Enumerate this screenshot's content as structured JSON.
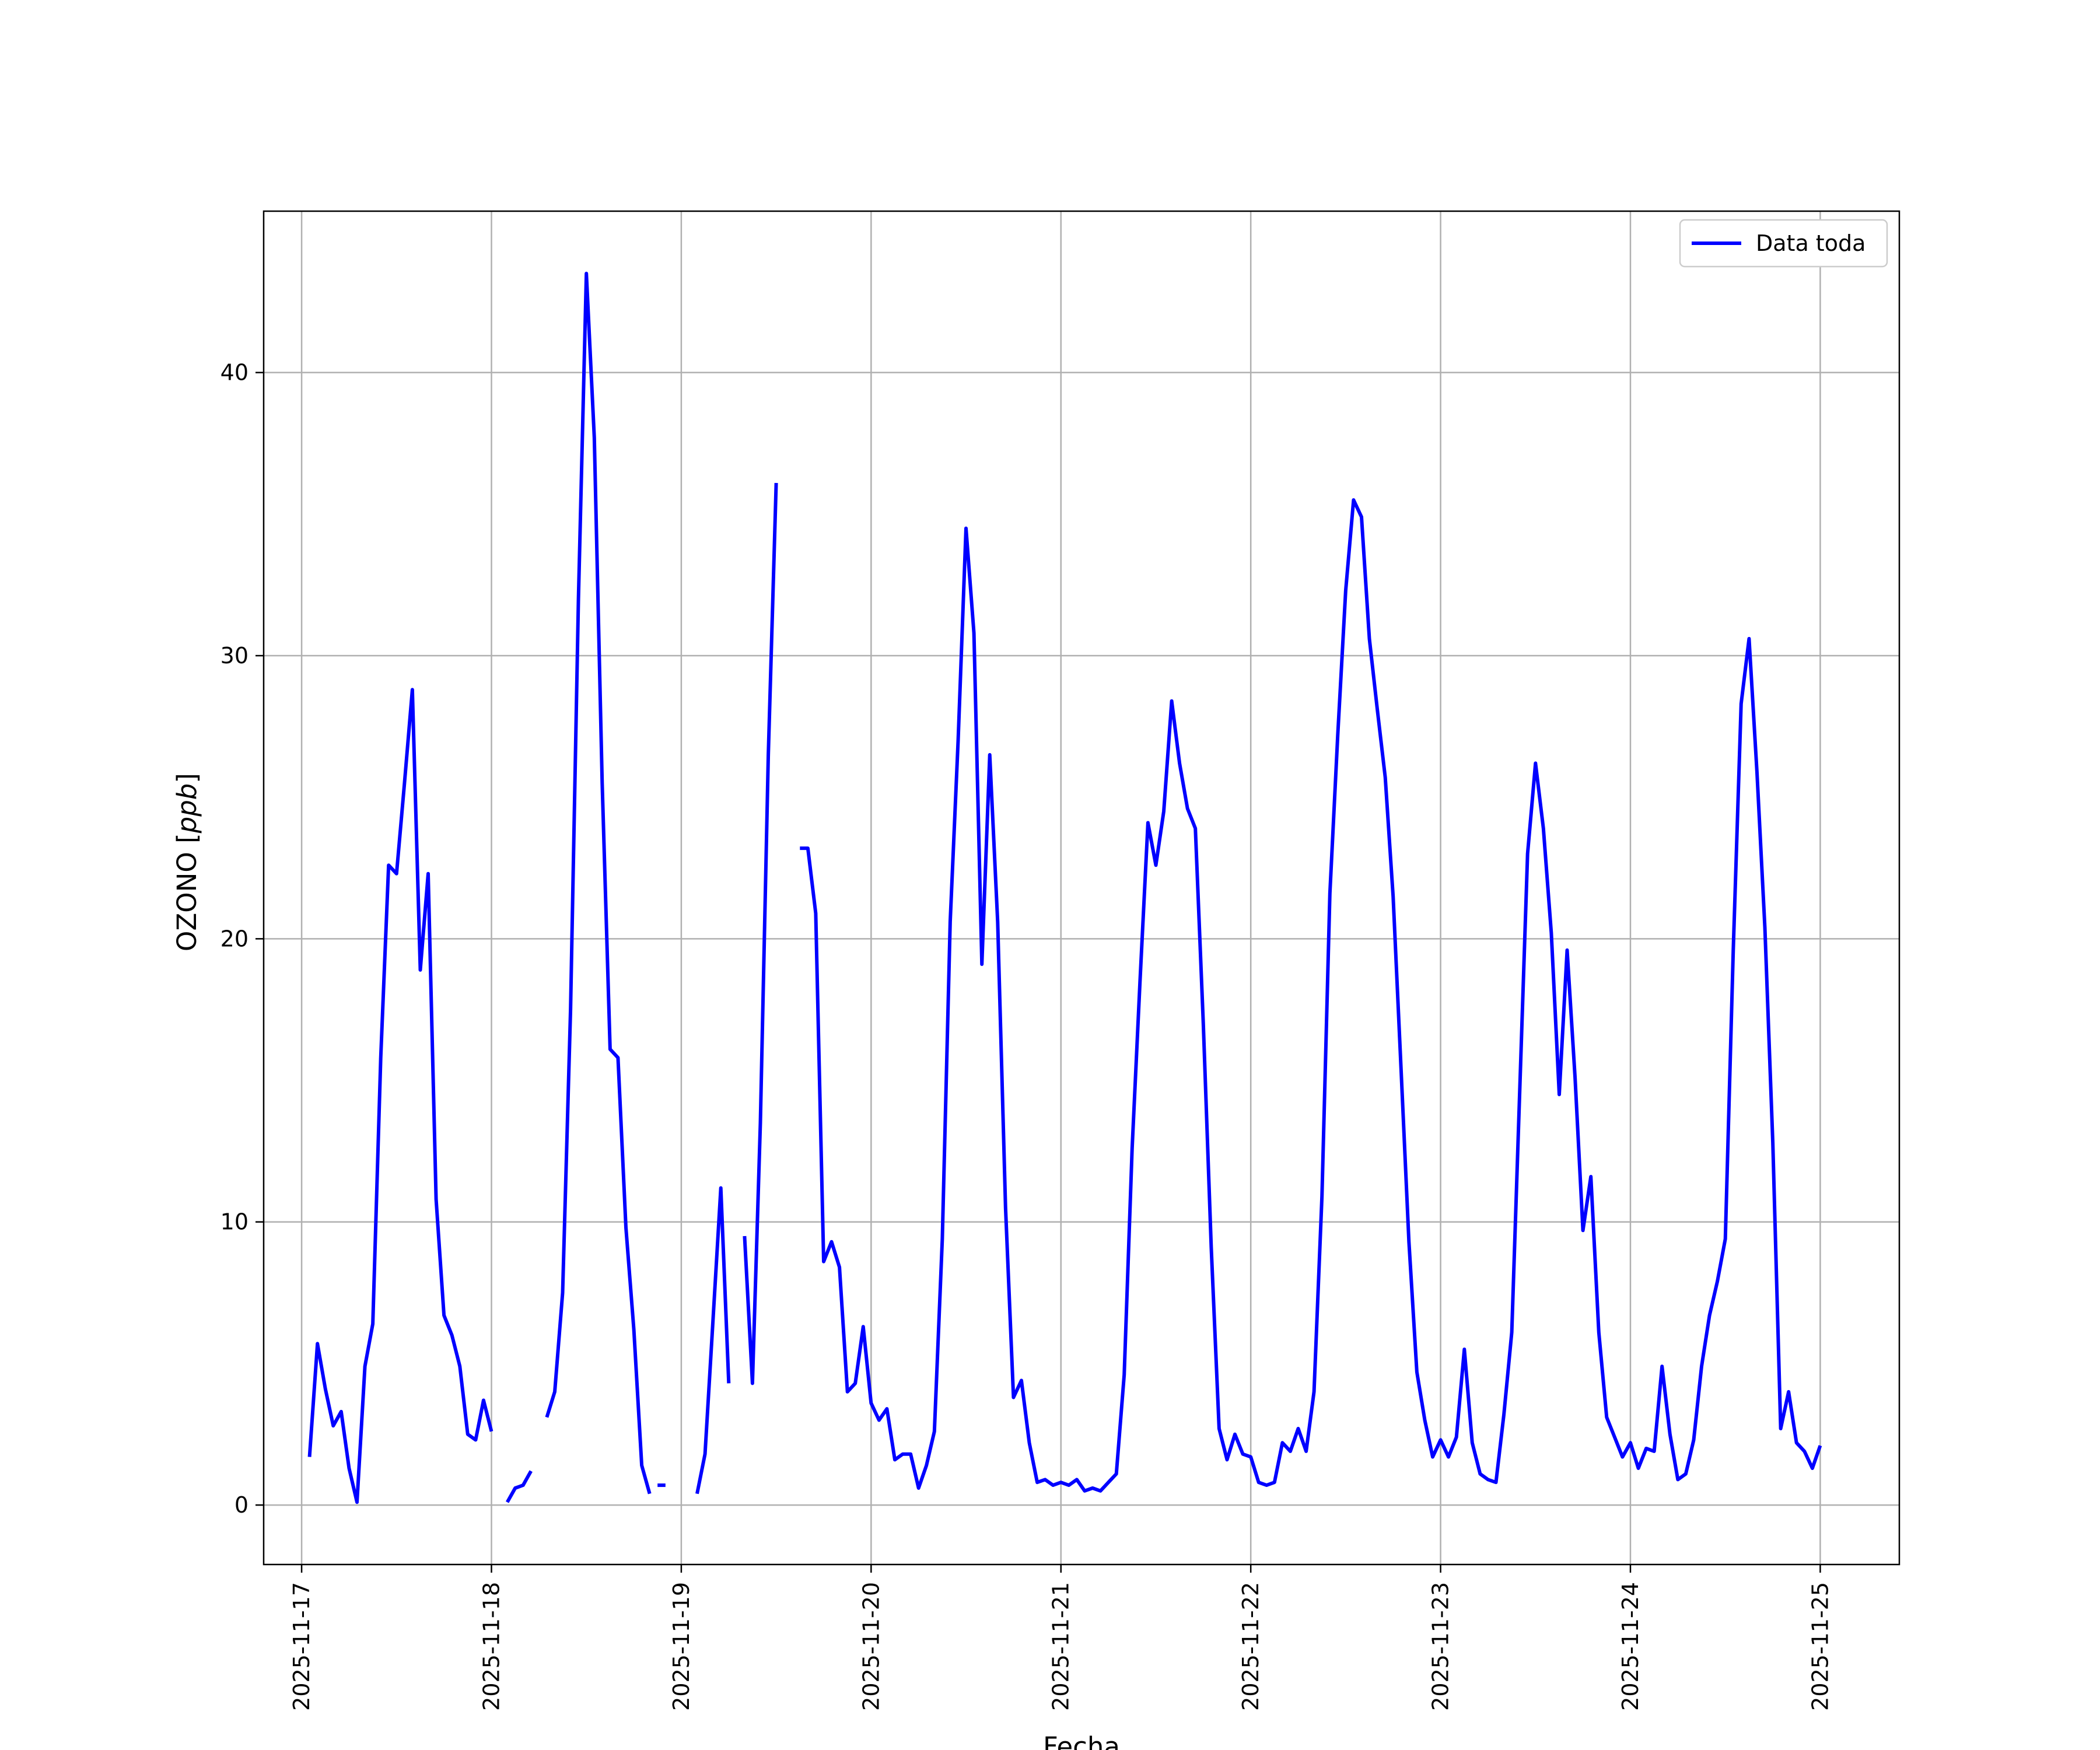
{
  "chart_data": {
    "type": "line",
    "xlabel": "Fecha",
    "ylabel": "OZONO [ppb]",
    "ylabel_main": "OZONO [",
    "ylabel_unit": "ppb",
    "ylabel_close": "]",
    "xlim": [
      "2025-11-16T19:12",
      "2025-11-25T10:00"
    ],
    "ylim": [
      -2.1,
      45.7
    ],
    "x_ticks": [
      "2025-11-17",
      "2025-11-18",
      "2025-11-19",
      "2025-11-20",
      "2025-11-21",
      "2025-11-22",
      "2025-11-23",
      "2025-11-24",
      "2025-11-25"
    ],
    "y_ticks": [
      0,
      10,
      20,
      30,
      40
    ],
    "grid": true,
    "legend_position": "top-right",
    "series": [
      {
        "name": "Data toda",
        "color": "#0000ff",
        "points": [
          [
            "2025-11-17T01:00",
            1.7
          ],
          [
            "2025-11-17T02:00",
            5.7
          ],
          [
            "2025-11-17T03:00",
            4.1
          ],
          [
            "2025-11-17T04:00",
            2.8
          ],
          [
            "2025-11-17T05:00",
            3.3
          ],
          [
            "2025-11-17T06:00",
            1.3
          ],
          [
            "2025-11-17T07:00",
            0.1
          ],
          [
            "2025-11-17T08:00",
            4.9
          ],
          [
            "2025-11-17T09:00",
            6.4
          ],
          [
            "2025-11-17T10:00",
            15.8
          ],
          [
            "2025-11-17T11:00",
            22.6
          ],
          [
            "2025-11-17T12:00",
            22.3
          ],
          [
            "2025-11-17T13:00",
            25.5
          ],
          [
            "2025-11-17T14:00",
            28.8
          ],
          [
            "2025-11-17T15:00",
            18.9
          ],
          [
            "2025-11-17T16:00",
            22.3
          ],
          [
            "2025-11-17T17:00",
            10.8
          ],
          [
            "2025-11-17T18:00",
            6.7
          ],
          [
            "2025-11-17T19:00",
            6.0
          ],
          [
            "2025-11-17T20:00",
            4.9
          ],
          [
            "2025-11-17T21:00",
            2.5
          ],
          [
            "2025-11-17T22:00",
            2.3
          ],
          [
            "2025-11-17T23:00",
            3.7
          ],
          [
            "2025-11-18T00:00",
            2.6
          ],
          [
            "2025-11-18T00:30",
            null
          ],
          [
            "2025-11-18T02:00",
            0.1
          ],
          [
            "2025-11-18T03:00",
            0.6
          ],
          [
            "2025-11-18T04:00",
            0.7
          ],
          [
            "2025-11-18T05:00",
            1.2
          ],
          [
            "2025-11-18T05:30",
            null
          ],
          [
            "2025-11-18T07:00",
            3.1
          ],
          [
            "2025-11-18T08:00",
            4.0
          ],
          [
            "2025-11-18T09:00",
            7.5
          ],
          [
            "2025-11-18T10:00",
            17.5
          ],
          [
            "2025-11-18T11:00",
            32.0
          ],
          [
            "2025-11-18T12:00",
            43.5
          ],
          [
            "2025-11-18T13:00",
            37.7
          ],
          [
            "2025-11-18T14:00",
            25.5
          ],
          [
            "2025-11-18T15:00",
            16.1
          ],
          [
            "2025-11-18T16:00",
            15.8
          ],
          [
            "2025-11-18T17:00",
            9.8
          ],
          [
            "2025-11-18T18:00",
            6.2
          ],
          [
            "2025-11-18T19:00",
            1.4
          ],
          [
            "2025-11-18T20:00",
            0.4
          ],
          [
            "2025-11-18T20:30",
            null
          ],
          [
            "2025-11-18T21:00",
            0.7
          ],
          [
            "2025-11-18T22:00",
            0.7
          ],
          [
            "2025-11-18T22:30",
            null
          ],
          [
            "2025-11-19T02:00",
            0.4
          ],
          [
            "2025-11-19T03:00",
            1.8
          ],
          [
            "2025-11-19T04:00",
            6.5
          ],
          [
            "2025-11-19T05:00",
            11.2
          ],
          [
            "2025-11-19T06:00",
            4.3
          ],
          [
            "2025-11-19T06:30",
            null
          ],
          [
            "2025-11-19T08:00",
            9.5
          ],
          [
            "2025-11-19T09:00",
            4.3
          ],
          [
            "2025-11-19T10:00",
            13.5
          ],
          [
            "2025-11-19T11:00",
            26.5
          ],
          [
            "2025-11-19T12:00",
            36.1
          ],
          [
            "2025-11-19T12:30",
            null
          ],
          [
            "2025-11-19T15:00",
            23.2
          ],
          [
            "2025-11-19T16:00",
            23.2
          ],
          [
            "2025-11-19T17:00",
            20.9
          ],
          [
            "2025-11-19T18:00",
            8.6
          ],
          [
            "2025-11-19T19:00",
            9.3
          ],
          [
            "2025-11-19T20:00",
            8.4
          ],
          [
            "2025-11-19T21:00",
            4.0
          ],
          [
            "2025-11-19T22:00",
            4.3
          ],
          [
            "2025-11-19T23:00",
            6.3
          ],
          [
            "2025-11-20T00:00",
            3.6
          ],
          [
            "2025-11-20T01:00",
            3.0
          ],
          [
            "2025-11-20T02:00",
            3.4
          ],
          [
            "2025-11-20T03:00",
            1.6
          ],
          [
            "2025-11-20T04:00",
            1.8
          ],
          [
            "2025-11-20T05:00",
            1.8
          ],
          [
            "2025-11-20T06:00",
            0.6
          ],
          [
            "2025-11-20T07:00",
            1.4
          ],
          [
            "2025-11-20T08:00",
            2.6
          ],
          [
            "2025-11-20T09:00",
            9.4
          ],
          [
            "2025-11-20T10:00",
            20.6
          ],
          [
            "2025-11-20T11:00",
            27.0
          ],
          [
            "2025-11-20T12:00",
            34.5
          ],
          [
            "2025-11-20T13:00",
            30.8
          ],
          [
            "2025-11-20T14:00",
            19.1
          ],
          [
            "2025-11-20T15:00",
            26.5
          ],
          [
            "2025-11-20T16:00",
            20.6
          ],
          [
            "2025-11-20T17:00",
            10.5
          ],
          [
            "2025-11-20T18:00",
            3.8
          ],
          [
            "2025-11-20T19:00",
            4.4
          ],
          [
            "2025-11-20T20:00",
            2.2
          ],
          [
            "2025-11-20T21:00",
            0.8
          ],
          [
            "2025-11-20T22:00",
            0.9
          ],
          [
            "2025-11-20T23:00",
            0.7
          ],
          [
            "2025-11-21T00:00",
            0.8
          ],
          [
            "2025-11-21T01:00",
            0.7
          ],
          [
            "2025-11-21T02:00",
            0.9
          ],
          [
            "2025-11-21T03:00",
            0.5
          ],
          [
            "2025-11-21T04:00",
            0.6
          ],
          [
            "2025-11-21T05:00",
            0.5
          ],
          [
            "2025-11-21T06:00",
            0.8
          ],
          [
            "2025-11-21T07:00",
            1.1
          ],
          [
            "2025-11-21T08:00",
            4.6
          ],
          [
            "2025-11-21T09:00",
            12.6
          ],
          [
            "2025-11-21T10:00",
            18.5
          ],
          [
            "2025-11-21T11:00",
            24.1
          ],
          [
            "2025-11-21T12:00",
            22.6
          ],
          [
            "2025-11-21T13:00",
            24.5
          ],
          [
            "2025-11-21T14:00",
            28.4
          ],
          [
            "2025-11-21T15:00",
            26.2
          ],
          [
            "2025-11-21T16:00",
            24.6
          ],
          [
            "2025-11-21T17:00",
            23.9
          ],
          [
            "2025-11-21T18:00",
            17.0
          ],
          [
            "2025-11-21T19:00",
            9.1
          ],
          [
            "2025-11-21T20:00",
            2.7
          ],
          [
            "2025-11-21T21:00",
            1.6
          ],
          [
            "2025-11-21T22:00",
            2.5
          ],
          [
            "2025-11-21T23:00",
            1.8
          ],
          [
            "2025-11-22T00:00",
            1.7
          ],
          [
            "2025-11-22T01:00",
            0.8
          ],
          [
            "2025-11-22T02:00",
            0.7
          ],
          [
            "2025-11-22T03:00",
            0.8
          ],
          [
            "2025-11-22T04:00",
            2.2
          ],
          [
            "2025-11-22T05:00",
            1.9
          ],
          [
            "2025-11-22T06:00",
            2.7
          ],
          [
            "2025-11-22T07:00",
            1.9
          ],
          [
            "2025-11-22T08:00",
            4.0
          ],
          [
            "2025-11-22T09:00",
            10.9
          ],
          [
            "2025-11-22T10:00",
            21.6
          ],
          [
            "2025-11-22T11:00",
            27.2
          ],
          [
            "2025-11-22T12:00",
            32.3
          ],
          [
            "2025-11-22T13:00",
            35.5
          ],
          [
            "2025-11-22T14:00",
            34.9
          ],
          [
            "2025-11-22T15:00",
            30.6
          ],
          [
            "2025-11-22T16:00",
            28.1
          ],
          [
            "2025-11-22T17:00",
            25.7
          ],
          [
            "2025-11-22T18:00",
            21.5
          ],
          [
            "2025-11-22T19:00",
            15.4
          ],
          [
            "2025-11-22T20:00",
            9.3
          ],
          [
            "2025-11-22T21:00",
            4.7
          ],
          [
            "2025-11-22T22:00",
            3.0
          ],
          [
            "2025-11-22T23:00",
            1.7
          ],
          [
            "2025-11-23T00:00",
            2.3
          ],
          [
            "2025-11-23T01:00",
            1.7
          ],
          [
            "2025-11-23T02:00",
            2.4
          ],
          [
            "2025-11-23T03:00",
            5.5
          ],
          [
            "2025-11-23T04:00",
            2.2
          ],
          [
            "2025-11-23T05:00",
            1.1
          ],
          [
            "2025-11-23T06:00",
            0.9
          ],
          [
            "2025-11-23T07:00",
            0.8
          ],
          [
            "2025-11-23T08:00",
            3.2
          ],
          [
            "2025-11-23T09:00",
            6.1
          ],
          [
            "2025-11-23T10:00",
            14.6
          ],
          [
            "2025-11-23T11:00",
            23.0
          ],
          [
            "2025-11-23T12:00",
            26.2
          ],
          [
            "2025-11-23T13:00",
            23.9
          ],
          [
            "2025-11-23T14:00",
            20.2
          ],
          [
            "2025-11-23T15:00",
            14.5
          ],
          [
            "2025-11-23T16:00",
            19.6
          ],
          [
            "2025-11-23T17:00",
            15.1
          ],
          [
            "2025-11-23T18:00",
            9.7
          ],
          [
            "2025-11-23T19:00",
            11.6
          ],
          [
            "2025-11-23T20:00",
            6.1
          ],
          [
            "2025-11-23T21:00",
            3.1
          ],
          [
            "2025-11-23T22:00",
            2.4
          ],
          [
            "2025-11-23T23:00",
            1.7
          ],
          [
            "2025-11-24T00:00",
            2.2
          ],
          [
            "2025-11-24T01:00",
            1.3
          ],
          [
            "2025-11-24T02:00",
            2.0
          ],
          [
            "2025-11-24T03:00",
            1.9
          ],
          [
            "2025-11-24T04:00",
            4.9
          ],
          [
            "2025-11-24T05:00",
            2.5
          ],
          [
            "2025-11-24T06:00",
            0.9
          ],
          [
            "2025-11-24T07:00",
            1.1
          ],
          [
            "2025-11-24T08:00",
            2.3
          ],
          [
            "2025-11-24T09:00",
            4.9
          ],
          [
            "2025-11-24T10:00",
            6.7
          ],
          [
            "2025-11-24T11:00",
            7.9
          ],
          [
            "2025-11-24T12:00",
            9.4
          ],
          [
            "2025-11-24T13:00",
            19.6
          ],
          [
            "2025-11-24T14:00",
            28.3
          ],
          [
            "2025-11-24T15:00",
            30.6
          ],
          [
            "2025-11-24T16:00",
            25.9
          ],
          [
            "2025-11-24T17:00",
            20.4
          ],
          [
            "2025-11-24T18:00",
            12.8
          ],
          [
            "2025-11-24T19:00",
            2.7
          ],
          [
            "2025-11-24T20:00",
            4.0
          ],
          [
            "2025-11-24T21:00",
            2.2
          ],
          [
            "2025-11-24T22:00",
            1.9
          ],
          [
            "2025-11-24T23:00",
            1.3
          ],
          [
            "2025-11-25T00:00",
            2.1
          ]
        ]
      }
    ]
  }
}
